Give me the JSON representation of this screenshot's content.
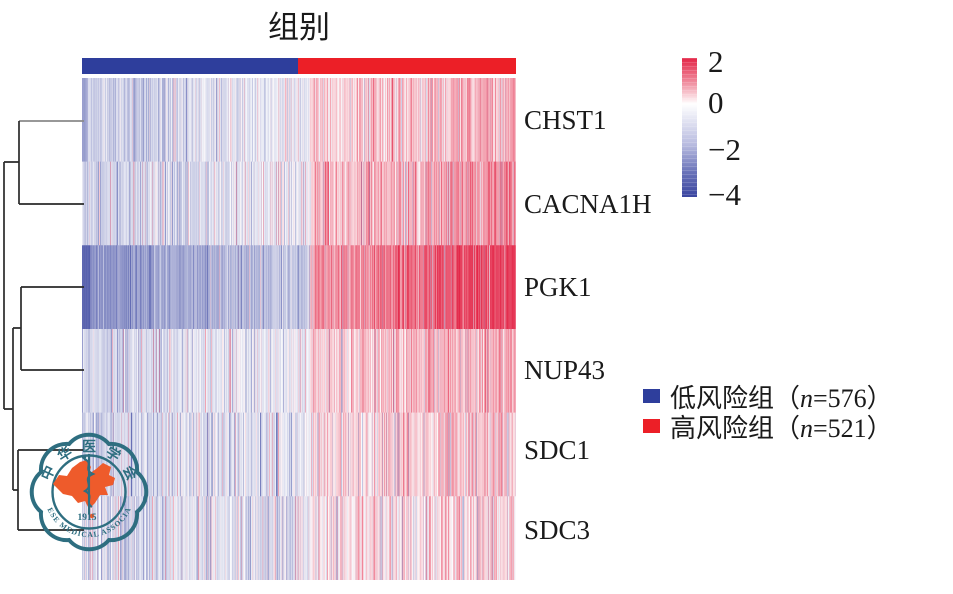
{
  "figure": {
    "title": "组别",
    "colorbar": {
      "tick_labels": [
        "2",
        "0",
        "−2",
        "−4"
      ],
      "top_color": "#e32547",
      "mid_color": "#ffffff",
      "bottom_color": "#3a45a0"
    },
    "legend": {
      "items": [
        {
          "swatch_color": "#2e3e9c",
          "prefix": "低风险组（",
          "n_var": "n",
          "suffix": "=576）"
        },
        {
          "swatch_color": "#ec1f27",
          "prefix": "高风险组（",
          "n_var": "n",
          "suffix": "=521）"
        }
      ]
    },
    "watermark": {
      "chars": [
        "中",
        "华",
        "医",
        "学",
        "会"
      ],
      "year": "1915",
      "bottom_text": "CHINESE MEDICAL ASSOCIATION"
    }
  },
  "chart_data": {
    "type": "heatmap",
    "title": "组别",
    "rows": [
      "CHST1",
      "CACNA1H",
      "PGK1",
      "NUP43",
      "SDC1",
      "SDC3"
    ],
    "column_groups": [
      {
        "label": "低风险组",
        "n": 576,
        "color": "#2e3e9c"
      },
      {
        "label": "高风险组",
        "n": 521,
        "color": "#ec1f27"
      }
    ],
    "value_scale": {
      "ticks": [
        2,
        0,
        -2,
        -4
      ],
      "domain": [
        -4.2,
        2.3
      ],
      "palette": [
        "#3a45a0",
        "#ffffff",
        "#e32547"
      ],
      "legend_position": "right"
    },
    "dendrogram": "((CHST1,CACNA1H),((PGK1,NUP43),(SDC1,SDC3)))",
    "estimated_row_group_means": [
      {
        "gene": "CHST1",
        "low": -0.55,
        "high": 0.35
      },
      {
        "gene": "CACNA1H",
        "low": -0.45,
        "high": 0.5
      },
      {
        "gene": "PGK1",
        "low": -1.25,
        "high": 0.9
      },
      {
        "gene": "NUP43",
        "low": -0.4,
        "high": 0.4
      },
      {
        "gene": "SDC1",
        "low": -0.45,
        "high": 0.3
      },
      {
        "gene": "SDC3",
        "low": -0.5,
        "high": 0.15
      }
    ]
  }
}
